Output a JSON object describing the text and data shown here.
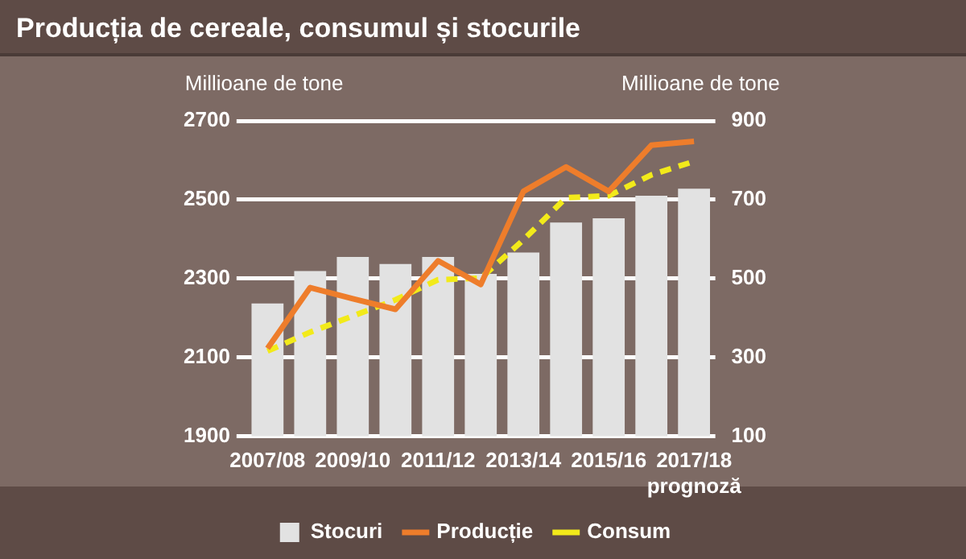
{
  "chart_data": {
    "type": "bar",
    "title": "Producția de cereale, consumul și stocurile",
    "ylabel": "Millioane de tone",
    "y2label": "Millioane de tone",
    "categories": [
      "2007/08",
      null,
      "2009/10",
      null,
      "2011/12",
      null,
      "2013/14",
      null,
      "2015/16",
      null,
      "2017/18 prognoză"
    ],
    "series": [
      {
        "name": "Stocuri",
        "axis": "y2",
        "color": "#e2e2e2",
        "values": [
          437,
          519,
          555,
          537,
          555,
          512,
          566,
          642,
          653,
          710,
          728
        ]
      },
      {
        "name": "Producție",
        "type": "line",
        "color": "#ee7d2b",
        "line_style": "solid",
        "values": [
          2123,
          2277,
          2249,
          2222,
          2345,
          2285,
          2521,
          2583,
          2521,
          2638,
          2648
        ]
      },
      {
        "name": "Consum",
        "type": "line",
        "color": "#f2ea1a",
        "line_style": "dashed",
        "values": [
          2116,
          2164,
          2205,
          2246,
          2297,
          2301,
          2398,
          2505,
          2510,
          2563,
          2597
        ]
      }
    ],
    "ylim": [
      1900,
      2700
    ],
    "yticks": [
      1900,
      2100,
      2300,
      2500,
      2700
    ],
    "y2lim": [
      100,
      900
    ],
    "y2ticks": [
      100,
      300,
      500,
      700,
      900
    ],
    "grid": "y",
    "legend": "bottom",
    "marker": "none"
  }
}
